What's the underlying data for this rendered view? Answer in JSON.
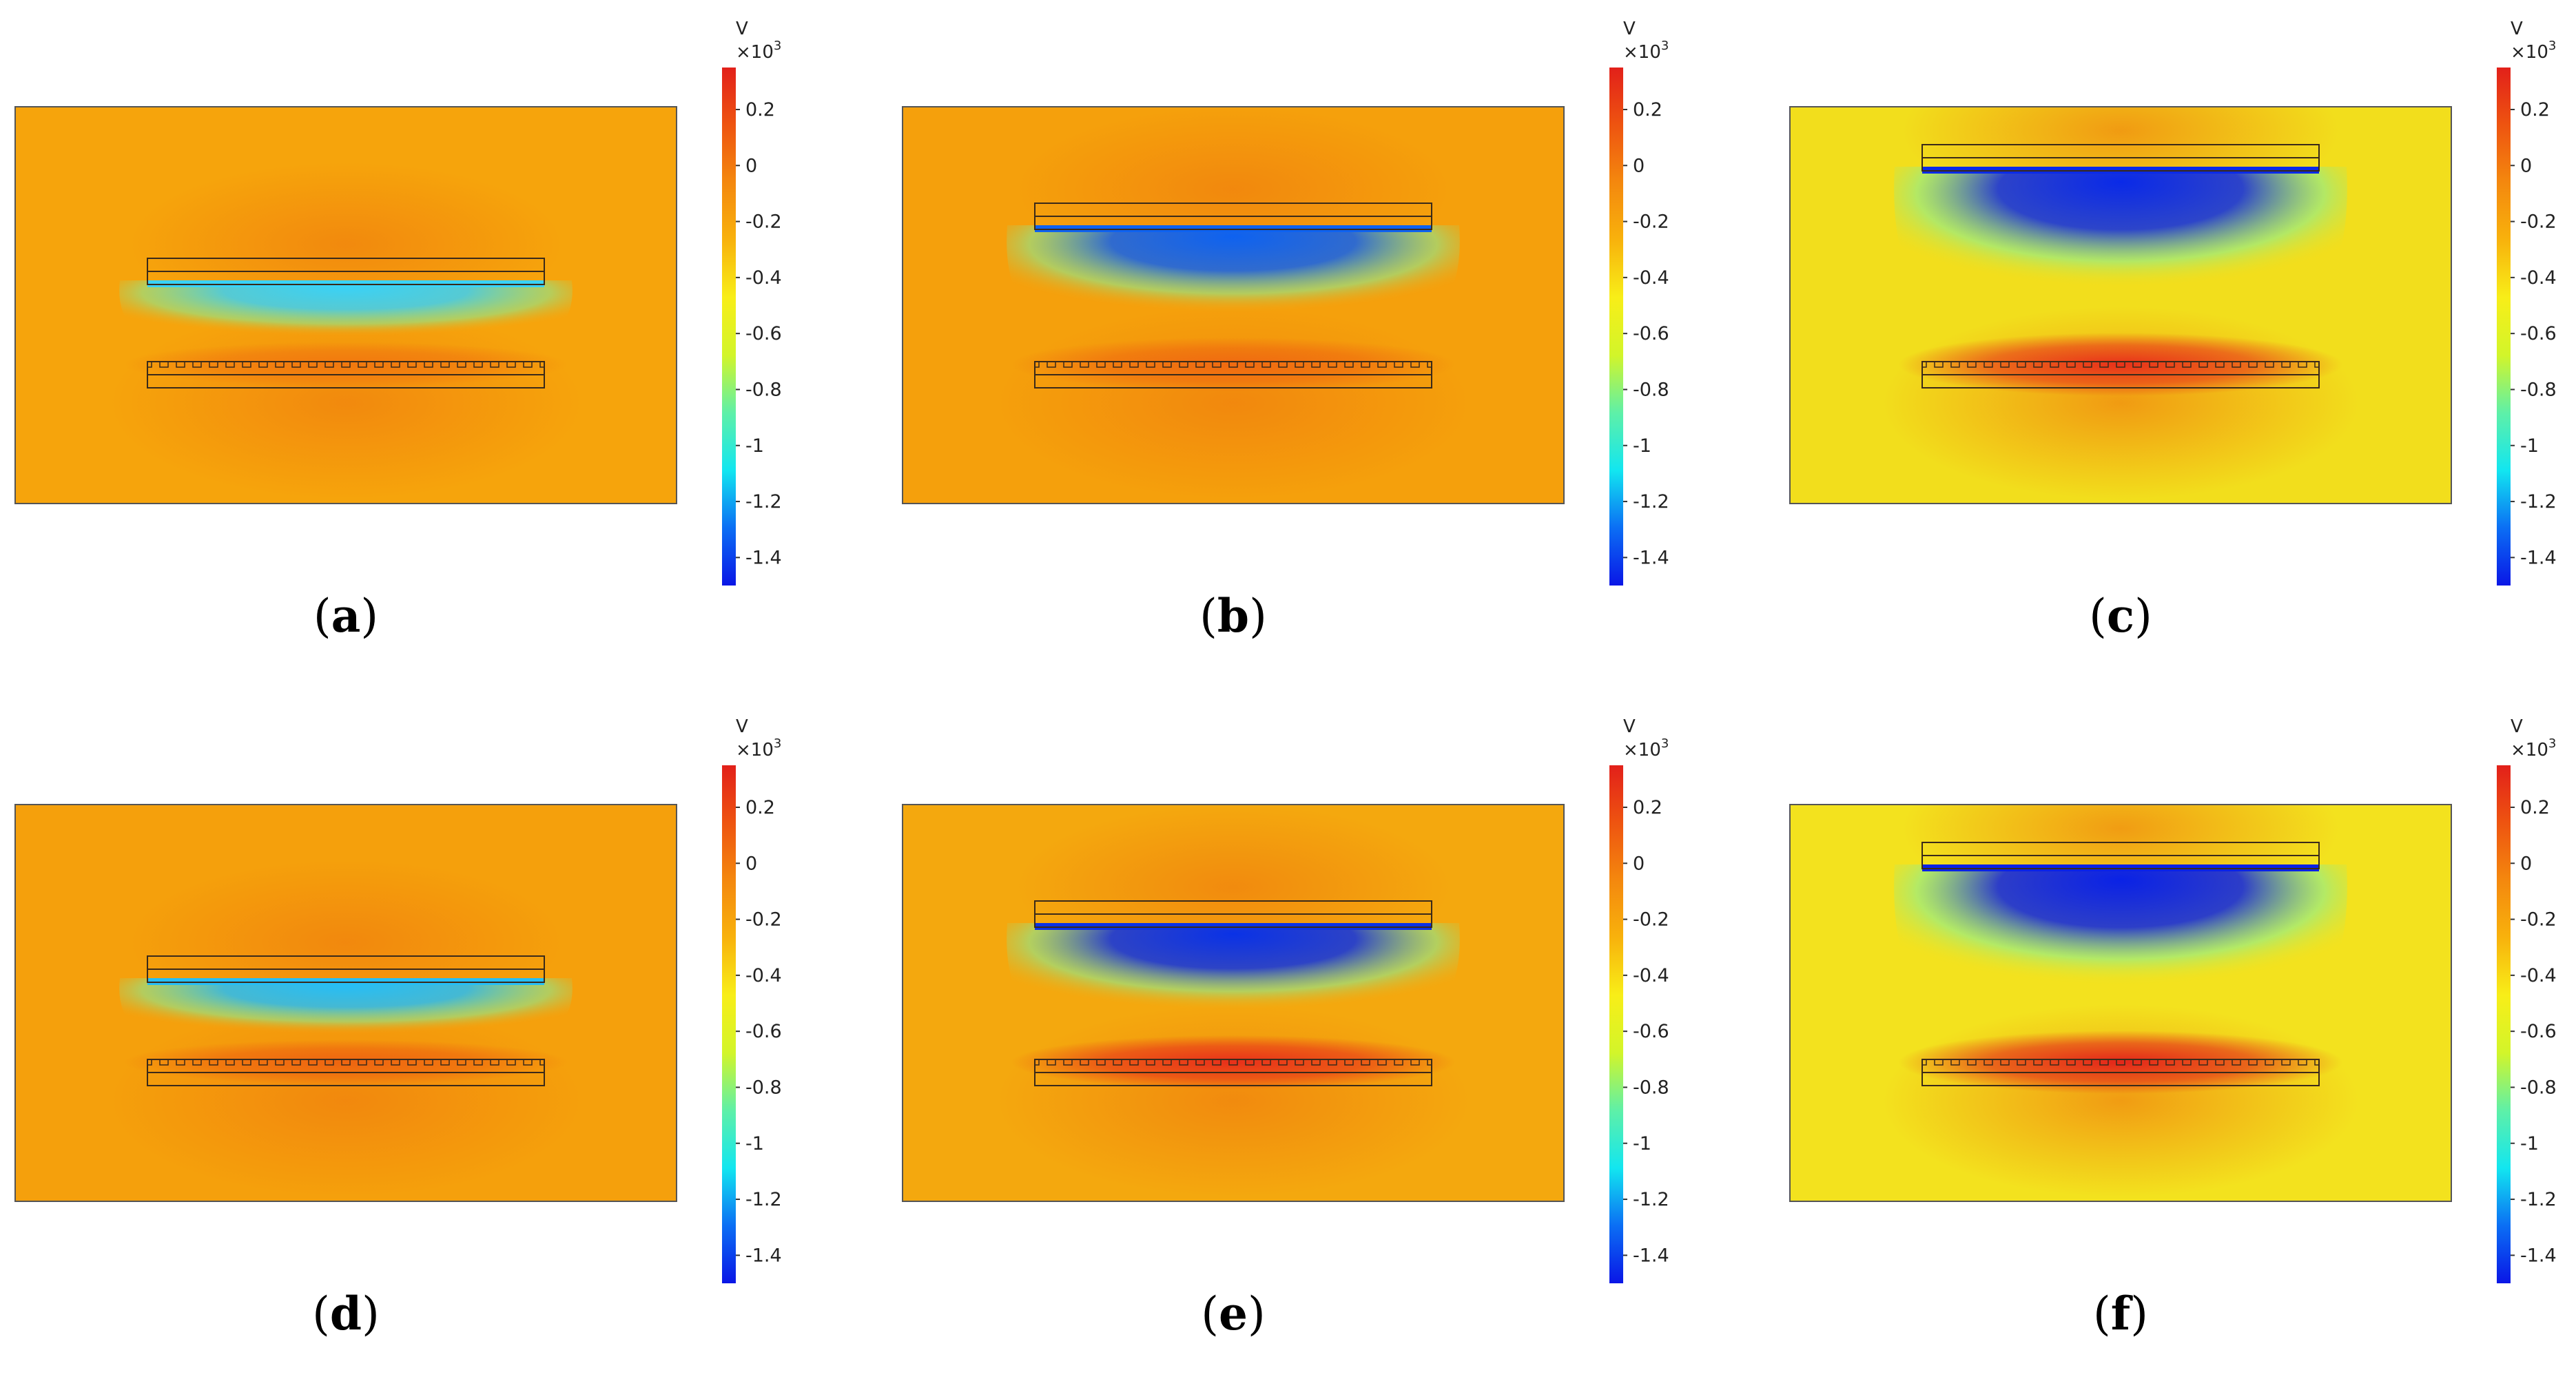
{
  "colorbar": {
    "unit": "V",
    "multiplier_base": "×10",
    "multiplier_exp": "3",
    "ticks": [
      {
        "value": 0.2,
        "label": "0.2"
      },
      {
        "value": 0.0,
        "label": "0"
      },
      {
        "value": -0.2,
        "label": "-0.2"
      },
      {
        "value": -0.4,
        "label": "-0.4"
      },
      {
        "value": -0.6,
        "label": "-0.6"
      },
      {
        "value": -0.8,
        "label": "-0.8"
      },
      {
        "value": -1.0,
        "label": "-1"
      },
      {
        "value": -1.2,
        "label": "-1.2"
      },
      {
        "value": -1.4,
        "label": "-1.4"
      }
    ],
    "range": [
      -1.5,
      0.35
    ],
    "colors": [
      "#0a16e6",
      "#0b6ef4",
      "#12e6f0",
      "#5ef0a8",
      "#d2f52a",
      "#f8ee18",
      "#f8b20c",
      "#f4880e",
      "#ee5410",
      "#e2201a"
    ]
  },
  "panels": [
    {
      "label": "a",
      "bg": "#f6a40c",
      "gap": 0.17,
      "well_color": "#3ad2f6",
      "glow_color": "#f1780e"
    },
    {
      "label": "b",
      "bg": "#f5a00c",
      "gap": 0.33,
      "well_color": "#0e62f0",
      "glow_color": "#ef6a10"
    },
    {
      "label": "c",
      "bg": "#f2de1c",
      "gap": 0.5,
      "well_color": "#0a2ae8",
      "glow_color": "#e8321a"
    },
    {
      "label": "d",
      "bg": "#f5a00c",
      "gap": 0.17,
      "well_color": "#26bef6",
      "glow_color": "#ee6410"
    },
    {
      "label": "e",
      "bg": "#f4a80e",
      "gap": 0.33,
      "well_color": "#0a32e6",
      "glow_color": "#e8301a"
    },
    {
      "label": "f",
      "bg": "#f3e21e",
      "gap": 0.5,
      "well_color": "#0a22e6",
      "glow_color": "#e4261a"
    }
  ]
}
